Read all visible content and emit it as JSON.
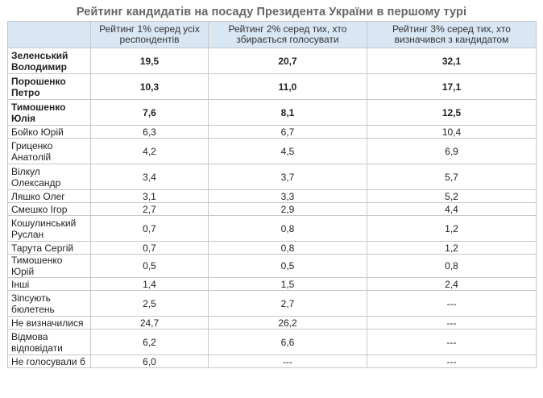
{
  "title": "Рейтинг кандидатів на посаду Президента України в першому турі",
  "columns": [
    "",
    "Рейтинг 1% серед усіх респондентів",
    "Рейтинг 2% серед тих, хто збирається голосувати",
    "Рейтинг 3% серед тих, хто визначився з кандидатом"
  ],
  "rows": [
    {
      "name": "Зеленський Володимир",
      "v1": "19,5",
      "v2": "20,7",
      "v3": "32,1",
      "bold": true,
      "tall": true
    },
    {
      "name": "Порошенко Петро",
      "v1": "10,3",
      "v2": "11,0",
      "v3": "17,1",
      "bold": true,
      "tall": true
    },
    {
      "name": "Тимошенко Юлія",
      "v1": "7,6",
      "v2": "8,1",
      "v3": "12,5",
      "bold": true,
      "tall": true
    },
    {
      "name": "Бойко Юрій",
      "v1": "6,3",
      "v2": "6,7",
      "v3": "10,4",
      "bold": false,
      "tall": false
    },
    {
      "name": "Гриценко Анатолій",
      "v1": "4,2",
      "v2": "4,5",
      "v3": "6,9",
      "bold": false,
      "tall": true
    },
    {
      "name": "Вілкул Олександр",
      "v1": "3,4",
      "v2": "3,7",
      "v3": "5,7",
      "bold": false,
      "tall": true
    },
    {
      "name": "Ляшко Олег",
      "v1": "3,1",
      "v2": "3,3",
      "v3": "5,2",
      "bold": false,
      "tall": false
    },
    {
      "name": "Смешко Ігор",
      "v1": "2,7",
      "v2": "2,9",
      "v3": "4,4",
      "bold": false,
      "tall": false
    },
    {
      "name": "Кошулинський Руслан",
      "v1": "0,7",
      "v2": "0,8",
      "v3": "1,2",
      "bold": false,
      "tall": true
    },
    {
      "name": "Тарута Сергій",
      "v1": "0,7",
      "v2": "0,8",
      "v3": "1,2",
      "bold": false,
      "tall": false
    },
    {
      "name": "Тимошенко Юрій",
      "v1": "0,5",
      "v2": "0,5",
      "v3": "0,8",
      "bold": false,
      "tall": false
    },
    {
      "name": "Інші",
      "v1": "1,4",
      "v2": "1,5",
      "v3": "2,4",
      "bold": false,
      "tall": false
    },
    {
      "name": "Зіпсують бюлетень",
      "v1": "2,5",
      "v2": "2,7",
      "v3": "---",
      "bold": false,
      "tall": true
    },
    {
      "name": "Не визначилися",
      "v1": "24,7",
      "v2": "26,2",
      "v3": "---",
      "bold": false,
      "tall": false
    },
    {
      "name": "Відмова відповідати",
      "v1": "6,2",
      "v2": "6,6",
      "v3": "---",
      "bold": false,
      "tall": true
    },
    {
      "name": "Не голосували б",
      "v1": "6,0",
      "v2": "---",
      "v3": "---",
      "bold": false,
      "tall": false
    }
  ]
}
